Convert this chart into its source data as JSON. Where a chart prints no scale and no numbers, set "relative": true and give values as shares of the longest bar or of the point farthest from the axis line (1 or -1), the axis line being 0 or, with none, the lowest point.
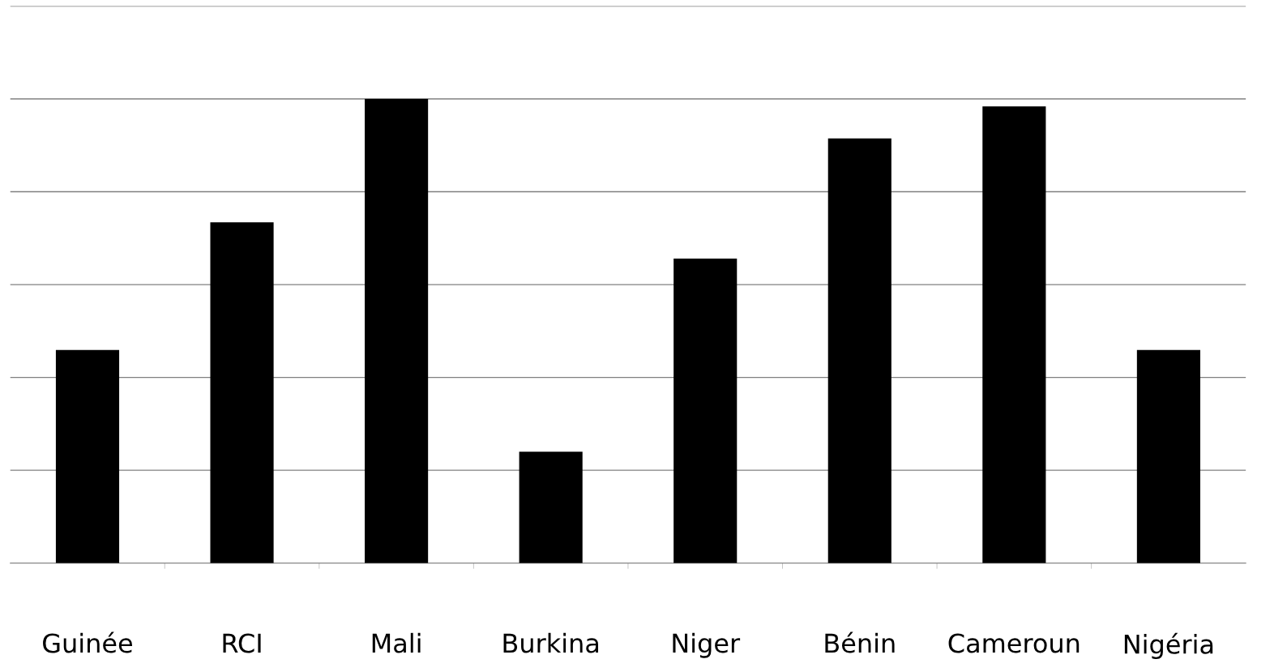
{
  "chart_data": {
    "type": "bar",
    "relative": true,
    "categories": [
      "Guinée",
      "RCI",
      "Mali",
      "Burkina",
      "Niger",
      "Bénin",
      "Cameroun",
      "Nigéria"
    ],
    "values": [
      0.459,
      0.734,
      1.0,
      0.24,
      0.656,
      0.915,
      0.984,
      0.459
    ],
    "color": "#000000",
    "grid": "y",
    "tick_labels": "x"
  }
}
